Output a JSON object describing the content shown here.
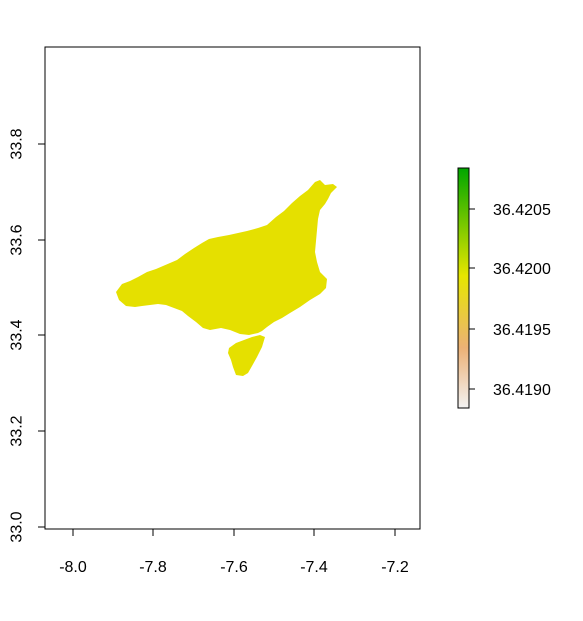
{
  "map": {
    "x_ticks": [
      "-8.0",
      "-7.8",
      "-7.6",
      "-7.4",
      "-7.2"
    ],
    "y_ticks": [
      "33.0",
      "33.2",
      "33.4",
      "33.6",
      "33.8"
    ],
    "fill_color": "#E5E000",
    "axis_color": "#000000"
  },
  "legend": {
    "labels": [
      "36.4205",
      "36.4200",
      "36.4195",
      "36.4190"
    ],
    "gradient_colors": [
      "#00A600",
      "#E6E600",
      "#ECB176",
      "#F2F2F2"
    ]
  }
}
